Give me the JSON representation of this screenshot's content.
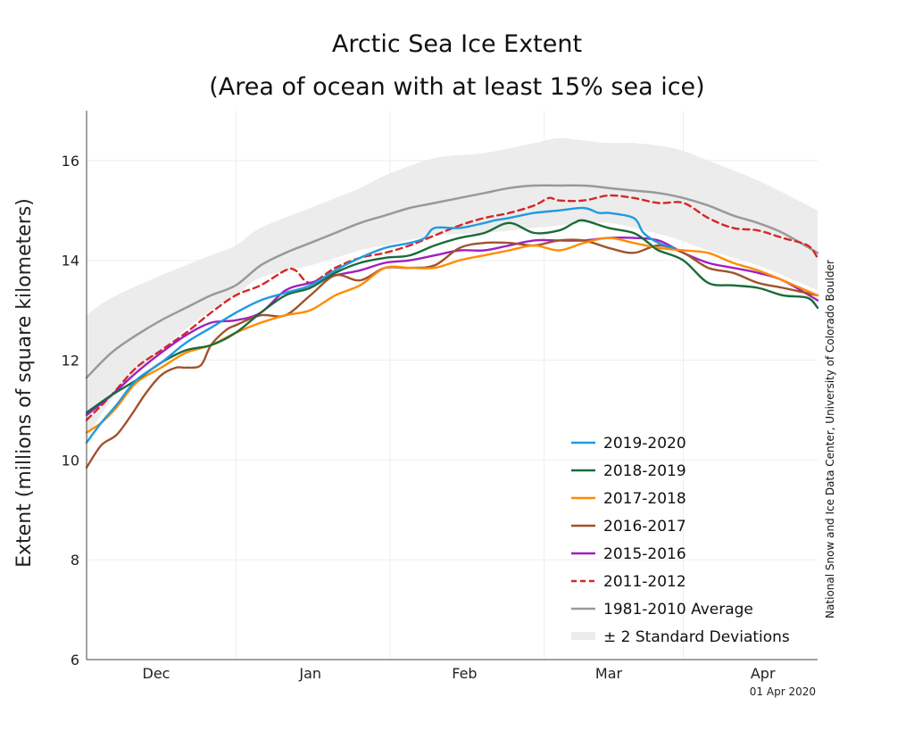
{
  "chart_data": {
    "type": "line",
    "title": "Arctic Sea Ice Extent",
    "subtitle": "(Area of ocean with at least 15% sea ice)",
    "ylabel": "Extent (millions of square kilometers)",
    "xlabel": "",
    "ylim": [
      6,
      17
    ],
    "yticks": [
      6,
      8,
      10,
      12,
      14,
      16
    ],
    "x_units": "day offset from Nov 21",
    "xlim": [
      0,
      147
    ],
    "month_labels": [
      {
        "label": "Dec",
        "x": 14
      },
      {
        "label": "Jan",
        "x": 45
      },
      {
        "label": "Feb",
        "x": 76
      },
      {
        "label": "Mar",
        "x": 105
      },
      {
        "label": "Apr",
        "x": 136
      }
    ],
    "month_gridlines": [
      30,
      61,
      92,
      120
    ],
    "date_stamp": "01 Apr 2020",
    "credit": "National Snow and Ice Data Center, University of Colorado Boulder",
    "legend_position": "bottom-right",
    "std_band": {
      "name": "± 2 Standard Deviations",
      "x": [
        0,
        5,
        15,
        25,
        30,
        35,
        45,
        55,
        60,
        70,
        80,
        90,
        95,
        100,
        105,
        110,
        118,
        125,
        135,
        147
      ],
      "upper": [
        12.9,
        13.25,
        13.7,
        14.1,
        14.3,
        14.65,
        15.05,
        15.45,
        15.7,
        16.05,
        16.15,
        16.35,
        16.45,
        16.4,
        16.35,
        16.35,
        16.25,
        16.0,
        15.6,
        15.0
      ],
      "lower": [
        10.4,
        11.2,
        12.2,
        13.0,
        13.3,
        13.65,
        13.9,
        14.2,
        14.3,
        14.5,
        14.55,
        14.65,
        14.7,
        14.75,
        14.75,
        14.65,
        14.45,
        14.2,
        13.9,
        13.4
      ]
    },
    "series": [
      {
        "name": "1981-2010 Average",
        "color": "#999999",
        "dash": false,
        "x": [
          0,
          5,
          10,
          15,
          20,
          25,
          30,
          35,
          40,
          45,
          50,
          55,
          60,
          65,
          70,
          75,
          80,
          85,
          90,
          95,
          100,
          105,
          110,
          115,
          120,
          125,
          130,
          135,
          140,
          147
        ],
        "y": [
          11.65,
          12.15,
          12.5,
          12.8,
          13.05,
          13.3,
          13.5,
          13.9,
          14.15,
          14.35,
          14.55,
          14.75,
          14.9,
          15.05,
          15.15,
          15.25,
          15.35,
          15.45,
          15.5,
          15.5,
          15.5,
          15.45,
          15.4,
          15.35,
          15.25,
          15.1,
          14.9,
          14.75,
          14.55,
          14.15
        ]
      },
      {
        "name": "2011-2012",
        "color": "#d62728",
        "dash": true,
        "x": [
          0,
          5,
          10,
          15,
          20,
          25,
          30,
          35,
          40,
          42,
          45,
          50,
          55,
          60,
          65,
          70,
          75,
          80,
          85,
          90,
          93,
          95,
          100,
          105,
          110,
          115,
          120,
          125,
          130,
          135,
          140,
          145,
          147
        ],
        "y": [
          10.8,
          11.3,
          11.85,
          12.2,
          12.55,
          12.95,
          13.3,
          13.5,
          13.8,
          13.8,
          13.55,
          13.85,
          14.05,
          14.15,
          14.3,
          14.5,
          14.7,
          14.85,
          14.95,
          15.1,
          15.25,
          15.2,
          15.2,
          15.3,
          15.25,
          15.15,
          15.15,
          14.85,
          14.65,
          14.6,
          14.45,
          14.3,
          14.05
        ]
      },
      {
        "name": "2015-2016",
        "color": "#a020c0",
        "dash": false,
        "x": [
          0,
          5,
          10,
          15,
          20,
          25,
          30,
          35,
          40,
          45,
          50,
          55,
          60,
          65,
          70,
          75,
          80,
          85,
          90,
          95,
          100,
          105,
          110,
          115,
          120,
          125,
          130,
          135,
          140,
          147
        ],
        "y": [
          10.9,
          11.3,
          11.75,
          12.15,
          12.5,
          12.75,
          12.8,
          12.95,
          13.4,
          13.55,
          13.7,
          13.8,
          13.95,
          14.0,
          14.1,
          14.2,
          14.2,
          14.3,
          14.4,
          14.4,
          14.4,
          14.45,
          14.45,
          14.4,
          14.15,
          13.95,
          13.85,
          13.75,
          13.6,
          13.2
        ]
      },
      {
        "name": "2016-2017",
        "color": "#a0522d",
        "dash": false,
        "x": [
          0,
          3,
          6,
          9,
          12,
          15,
          18,
          20,
          23,
          25,
          28,
          30,
          35,
          40,
          45,
          50,
          55,
          60,
          65,
          70,
          75,
          80,
          85,
          90,
          95,
          100,
          105,
          110,
          115,
          120,
          125,
          130,
          135,
          140,
          147
        ],
        "y": [
          9.85,
          10.3,
          10.5,
          10.9,
          11.35,
          11.7,
          11.85,
          11.85,
          11.9,
          12.3,
          12.6,
          12.7,
          12.9,
          12.9,
          13.3,
          13.7,
          13.6,
          13.85,
          13.85,
          13.9,
          14.25,
          14.35,
          14.35,
          14.3,
          14.4,
          14.4,
          14.25,
          14.15,
          14.3,
          14.15,
          13.85,
          13.75,
          13.55,
          13.45,
          13.3
        ]
      },
      {
        "name": "2017-2018",
        "color": "#ff8c00",
        "dash": false,
        "x": [
          0,
          3,
          6,
          10,
          15,
          20,
          25,
          30,
          35,
          40,
          45,
          50,
          55,
          60,
          65,
          70,
          75,
          80,
          85,
          90,
          95,
          100,
          105,
          110,
          115,
          120,
          125,
          130,
          135,
          140,
          147
        ],
        "y": [
          10.55,
          10.75,
          11.05,
          11.55,
          11.85,
          12.15,
          12.3,
          12.55,
          12.75,
          12.9,
          13.0,
          13.3,
          13.5,
          13.85,
          13.85,
          13.85,
          14.0,
          14.1,
          14.2,
          14.3,
          14.2,
          14.35,
          14.45,
          14.35,
          14.25,
          14.2,
          14.15,
          13.95,
          13.8,
          13.6,
          13.3
        ]
      },
      {
        "name": "2018-2019",
        "color": "#1a6b3a",
        "dash": false,
        "x": [
          0,
          5,
          10,
          15,
          20,
          25,
          30,
          35,
          40,
          45,
          50,
          55,
          60,
          65,
          70,
          75,
          80,
          85,
          90,
          95,
          98,
          100,
          105,
          110,
          113,
          115,
          120,
          125,
          130,
          135,
          140,
          145,
          147
        ],
        "y": [
          10.95,
          11.3,
          11.6,
          11.95,
          12.2,
          12.3,
          12.55,
          12.95,
          13.3,
          13.45,
          13.75,
          13.95,
          14.05,
          14.1,
          14.3,
          14.45,
          14.55,
          14.75,
          14.55,
          14.6,
          14.75,
          14.8,
          14.65,
          14.55,
          14.35,
          14.2,
          14.0,
          13.55,
          13.5,
          13.45,
          13.3,
          13.25,
          13.05
        ]
      },
      {
        "name": "2019-2020",
        "color": "#1f9be0",
        "dash": false,
        "x": [
          0,
          3,
          6,
          10,
          15,
          20,
          25,
          30,
          35,
          40,
          45,
          50,
          55,
          60,
          65,
          68,
          70,
          75,
          80,
          82,
          85,
          90,
          95,
          100,
          103,
          105,
          110,
          112,
          115,
          118
        ],
        "y": [
          10.35,
          10.75,
          11.1,
          11.6,
          11.95,
          12.35,
          12.65,
          12.95,
          13.2,
          13.35,
          13.5,
          13.8,
          14.05,
          14.25,
          14.35,
          14.45,
          14.65,
          14.65,
          14.75,
          14.8,
          14.85,
          14.95,
          15.0,
          15.05,
          14.95,
          14.95,
          14.85,
          14.55,
          14.35,
          14.25
        ]
      }
    ]
  }
}
